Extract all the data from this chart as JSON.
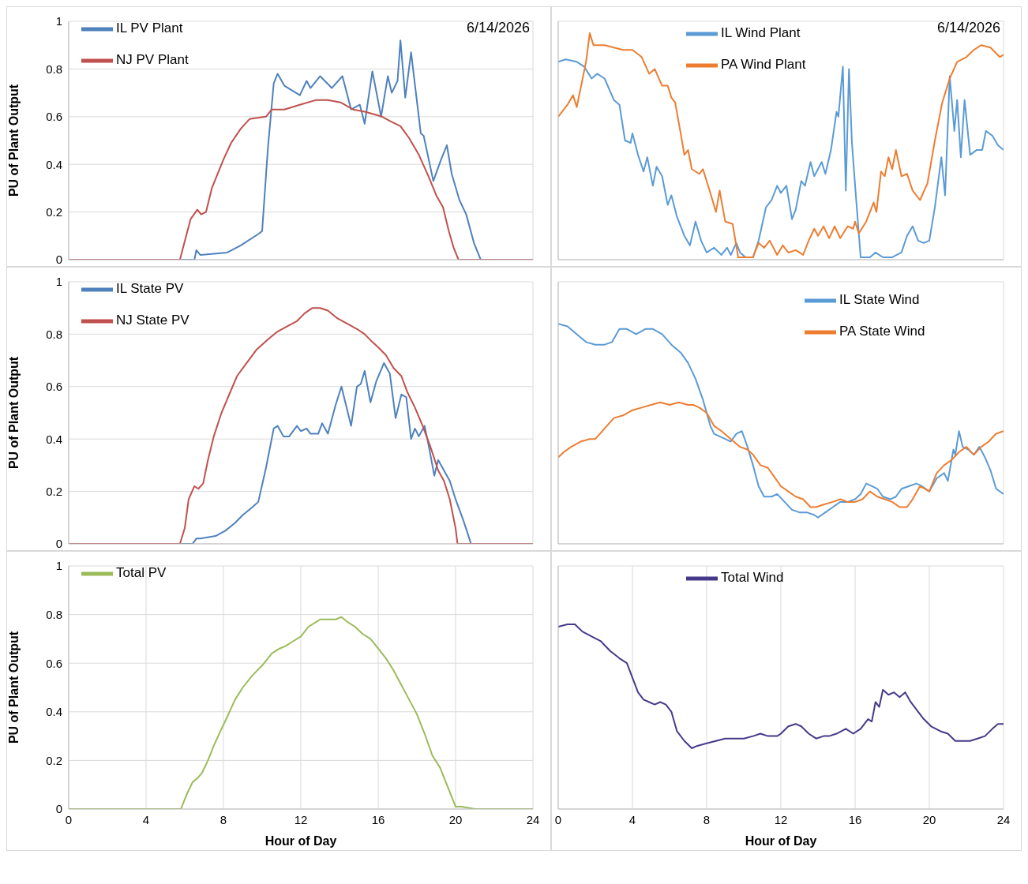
{
  "chart_data": [
    {
      "type": "line",
      "ylabel": "PU of Plant Output",
      "annotations": [
        "6/14/2026"
      ],
      "xlim": [
        0,
        24
      ],
      "xticks": [
        0,
        4,
        8,
        12,
        16,
        20,
        24
      ],
      "ylim": [
        0,
        1
      ],
      "yticks": [
        0,
        0.2,
        0.4,
        0.6,
        0.8,
        1
      ],
      "tick_labels": "y",
      "grid": true,
      "legend": "top left",
      "marker": "none",
      "series": [
        {
          "name": "IL PV Plant",
          "color": "#4f81bd",
          "x": [
            0,
            6.5,
            6.6,
            6.8,
            8.2,
            8.9,
            9.85,
            10.0,
            10.3,
            10.6,
            10.8,
            11.15,
            11.95,
            12.3,
            12.5,
            13.0,
            13.6,
            14.15,
            14.6,
            15.05,
            15.3,
            15.7,
            16.15,
            16.5,
            16.7,
            17.0,
            17.15,
            17.4,
            17.7,
            17.95,
            18.2,
            18.35,
            18.85,
            19.25,
            19.55,
            19.8,
            20.2,
            20.55,
            20.95,
            21.3,
            24
          ],
          "values": [
            0,
            0,
            0.04,
            0.02,
            0.03,
            0.06,
            0.11,
            0.12,
            0.47,
            0.74,
            0.78,
            0.73,
            0.69,
            0.75,
            0.72,
            0.77,
            0.72,
            0.77,
            0.63,
            0.65,
            0.57,
            0.79,
            0.6,
            0.77,
            0.7,
            0.75,
            0.92,
            0.68,
            0.87,
            0.7,
            0.53,
            0.52,
            0.33,
            0.42,
            0.48,
            0.36,
            0.25,
            0.19,
            0.07,
            0,
            0
          ]
        },
        {
          "name": "NJ PV Plant",
          "color": "#c0504d",
          "x": [
            0,
            5.75,
            6.3,
            6.65,
            6.85,
            7.1,
            7.4,
            8.0,
            8.4,
            8.9,
            9.35,
            10.2,
            10.5,
            11.15,
            11.95,
            12.8,
            13.4,
            14.05,
            14.7,
            15.35,
            16.2,
            16.65,
            17.15,
            17.6,
            18.1,
            18.6,
            19.0,
            19.35,
            19.65,
            19.9,
            20.15,
            24
          ],
          "values": [
            0,
            0,
            0.17,
            0.21,
            0.19,
            0.2,
            0.3,
            0.42,
            0.49,
            0.55,
            0.59,
            0.6,
            0.63,
            0.63,
            0.65,
            0.67,
            0.67,
            0.66,
            0.63,
            0.62,
            0.6,
            0.58,
            0.56,
            0.51,
            0.44,
            0.35,
            0.27,
            0.22,
            0.12,
            0.05,
            0,
            0
          ]
        }
      ]
    },
    {
      "type": "line",
      "annotations": [
        "6/14/2026"
      ],
      "xlim": [
        0,
        24
      ],
      "xticks": [
        0,
        4,
        8,
        12,
        16,
        20,
        24
      ],
      "ylim": [
        0,
        1
      ],
      "yticks": [
        0,
        0.2,
        0.4,
        0.6,
        0.8,
        1
      ],
      "tick_labels": false,
      "grid": true,
      "legend": "top",
      "marker": "none",
      "series": [
        {
          "name": "IL Wind Plant",
          "color": "#5b9bd5",
          "x": [
            0,
            0.4,
            1.0,
            1.4,
            1.8,
            2.1,
            2.5,
            3.0,
            3.3,
            3.6,
            3.9,
            4.0,
            4.3,
            4.6,
            4.8,
            5.1,
            5.3,
            5.6,
            5.9,
            6.1,
            6.4,
            6.8,
            7.1,
            7.4,
            7.7,
            8.0,
            8.4,
            8.8,
            9.1,
            9.3,
            9.6,
            9.8,
            10.1,
            10.5,
            10.8,
            11.2,
            11.5,
            11.8,
            12.0,
            12.3,
            12.6,
            12.8,
            13.1,
            13.3,
            13.6,
            13.8,
            14.2,
            14.4,
            14.7,
            15.0,
            15.1,
            15.34,
            15.5,
            15.67,
            15.83,
            16.07,
            16.3,
            16.8,
            17.1,
            17.5,
            18.0,
            18.5,
            18.8,
            19.1,
            19.4,
            19.7,
            20.0,
            20.3,
            20.65,
            20.85,
            21.1,
            21.35,
            21.5,
            21.7,
            21.9,
            22.2,
            22.55,
            22.85,
            23.05,
            23.4,
            23.7,
            24
          ],
          "values": [
            0.83,
            0.84,
            0.83,
            0.81,
            0.76,
            0.78,
            0.76,
            0.67,
            0.65,
            0.5,
            0.49,
            0.53,
            0.44,
            0.37,
            0.43,
            0.31,
            0.39,
            0.35,
            0.23,
            0.27,
            0.18,
            0.1,
            0.06,
            0.16,
            0.08,
            0.03,
            0.05,
            0.02,
            0.05,
            0.02,
            0.07,
            0.03,
            0.01,
            0.01,
            0.08,
            0.22,
            0.25,
            0.31,
            0.28,
            0.31,
            0.17,
            0.21,
            0.33,
            0.31,
            0.41,
            0.35,
            0.41,
            0.36,
            0.46,
            0.62,
            0.6,
            0.81,
            0.29,
            0.8,
            0.49,
            0.24,
            0.01,
            0.01,
            0.03,
            0.01,
            0.01,
            0.03,
            0.1,
            0.14,
            0.08,
            0.07,
            0.08,
            0.22,
            0.43,
            0.27,
            0.77,
            0.54,
            0.67,
            0.43,
            0.67,
            0.44,
            0.46,
            0.46,
            0.54,
            0.52,
            0.48,
            0.46
          ]
        },
        {
          "name": "PA Wind Plant",
          "color": "#ed7d31",
          "x": [
            0,
            0.5,
            0.8,
            1.0,
            1.5,
            1.7,
            1.9,
            2.5,
            3.0,
            3.5,
            4.0,
            4.5,
            4.9,
            5.2,
            5.6,
            5.9,
            6.1,
            6.3,
            6.6,
            6.8,
            7.0,
            7.2,
            7.6,
            7.8,
            8.2,
            8.5,
            8.7,
            9.0,
            9.4,
            9.7,
            10.5,
            10.8,
            11.1,
            11.4,
            11.8,
            12.1,
            12.4,
            12.8,
            13.2,
            13.5,
            13.8,
            14.0,
            14.3,
            14.6,
            14.9,
            15.2,
            15.6,
            15.9,
            16.0,
            16.2,
            16.6,
            17.0,
            17.15,
            17.4,
            17.6,
            17.8,
            18.0,
            18.2,
            18.5,
            18.8,
            19.1,
            19.5,
            19.9,
            20.3,
            20.7,
            21.1,
            21.5,
            22.0,
            22.4,
            22.8,
            23.3,
            23.8,
            24
          ],
          "values": [
            0.6,
            0.65,
            0.69,
            0.64,
            0.83,
            0.95,
            0.9,
            0.9,
            0.89,
            0.88,
            0.88,
            0.85,
            0.78,
            0.8,
            0.73,
            0.73,
            0.68,
            0.66,
            0.53,
            0.44,
            0.46,
            0.38,
            0.36,
            0.38,
            0.28,
            0.2,
            0.29,
            0.16,
            0.15,
            0.01,
            0.01,
            0.07,
            0.05,
            0.08,
            0.02,
            0.06,
            0.03,
            0.04,
            0.02,
            0.08,
            0.13,
            0.1,
            0.14,
            0.09,
            0.14,
            0.09,
            0.14,
            0.13,
            0.16,
            0.11,
            0.16,
            0.24,
            0.2,
            0.37,
            0.35,
            0.43,
            0.38,
            0.46,
            0.35,
            0.36,
            0.29,
            0.25,
            0.32,
            0.5,
            0.66,
            0.76,
            0.83,
            0.85,
            0.88,
            0.9,
            0.89,
            0.85,
            0.86
          ]
        }
      ]
    },
    {
      "type": "line",
      "ylabel": "PU of Plant Output",
      "xlim": [
        0,
        24
      ],
      "xticks": [
        0,
        4,
        8,
        12,
        16,
        20,
        24
      ],
      "ylim": [
        0,
        1
      ],
      "yticks": [
        0,
        0.2,
        0.4,
        0.6,
        0.8,
        1
      ],
      "tick_labels": "y",
      "grid": true,
      "legend": "top left",
      "marker": "none",
      "series": [
        {
          "name": "IL State PV",
          "color": "#4f81bd",
          "x": [
            0,
            6.4,
            6.6,
            6.8,
            7.6,
            8.1,
            8.6,
            9.0,
            9.5,
            9.8,
            10.2,
            10.6,
            10.8,
            11.1,
            11.4,
            11.8,
            12.0,
            12.3,
            12.5,
            12.9,
            13.1,
            13.4,
            13.8,
            14.1,
            14.6,
            14.9,
            15.1,
            15.3,
            15.6,
            15.9,
            16.3,
            16.6,
            16.9,
            17.2,
            17.45,
            17.7,
            17.9,
            18.1,
            18.4,
            18.65,
            18.9,
            19.1,
            19.4,
            19.7,
            20.0,
            20.4,
            20.8,
            24
          ],
          "values": [
            0,
            0,
            0.02,
            0.02,
            0.03,
            0.05,
            0.08,
            0.11,
            0.14,
            0.16,
            0.29,
            0.44,
            0.45,
            0.41,
            0.41,
            0.45,
            0.43,
            0.44,
            0.42,
            0.42,
            0.46,
            0.42,
            0.53,
            0.6,
            0.45,
            0.6,
            0.61,
            0.66,
            0.54,
            0.62,
            0.69,
            0.65,
            0.48,
            0.57,
            0.56,
            0.4,
            0.44,
            0.41,
            0.45,
            0.36,
            0.26,
            0.32,
            0.28,
            0.24,
            0.17,
            0.09,
            0,
            0
          ]
        },
        {
          "name": "NJ State PV",
          "color": "#c0504d",
          "x": [
            0,
            5.75,
            6.0,
            6.2,
            6.5,
            6.7,
            6.95,
            7.2,
            7.5,
            7.9,
            8.3,
            8.7,
            9.2,
            9.7,
            10.3,
            10.8,
            11.3,
            11.8,
            12.2,
            12.6,
            13.0,
            13.4,
            13.9,
            14.4,
            14.9,
            15.3,
            15.7,
            16.0,
            16.4,
            16.8,
            17.2,
            17.5,
            17.9,
            18.3,
            18.7,
            19.1,
            19.4,
            19.7,
            20.0,
            20.1,
            24
          ],
          "values": [
            0,
            0,
            0.06,
            0.17,
            0.22,
            0.21,
            0.23,
            0.32,
            0.41,
            0.5,
            0.57,
            0.64,
            0.69,
            0.74,
            0.78,
            0.81,
            0.83,
            0.85,
            0.88,
            0.9,
            0.9,
            0.89,
            0.86,
            0.84,
            0.82,
            0.8,
            0.77,
            0.75,
            0.72,
            0.67,
            0.64,
            0.58,
            0.52,
            0.45,
            0.37,
            0.28,
            0.24,
            0.17,
            0.06,
            0,
            0
          ]
        }
      ]
    },
    {
      "type": "line",
      "xlim": [
        0,
        24
      ],
      "xticks": [
        0,
        4,
        8,
        12,
        16,
        20,
        24
      ],
      "ylim": [
        0,
        1
      ],
      "yticks": [
        0,
        0.2,
        0.4,
        0.6,
        0.8,
        1
      ],
      "tick_labels": false,
      "grid": true,
      "legend": "top right",
      "marker": "none",
      "series": [
        {
          "name": "IL State Wind",
          "color": "#5b9bd5",
          "x": [
            0,
            0.5,
            1.0,
            1.5,
            2.0,
            2.5,
            2.9,
            3.3,
            3.7,
            4.2,
            4.7,
            5.1,
            5.6,
            6.1,
            6.6,
            7.0,
            7.4,
            7.8,
            8.0,
            8.2,
            8.4,
            8.7,
            9.0,
            9.3,
            9.6,
            9.9,
            10.2,
            10.5,
            10.8,
            11.1,
            11.5,
            11.8,
            12.2,
            12.6,
            13.0,
            13.4,
            13.8,
            14.0,
            14.4,
            14.8,
            15.2,
            15.6,
            16.0,
            16.3,
            16.6,
            16.9,
            17.2,
            17.5,
            17.9,
            18.2,
            18.5,
            18.9,
            19.3,
            19.6,
            20.0,
            20.4,
            20.8,
            21.0,
            21.3,
            21.4,
            21.6,
            21.8,
            22.1,
            22.4,
            22.7,
            23.0,
            23.3,
            23.6,
            24
          ],
          "values": [
            0.84,
            0.83,
            0.8,
            0.77,
            0.76,
            0.76,
            0.77,
            0.82,
            0.82,
            0.8,
            0.82,
            0.82,
            0.8,
            0.76,
            0.73,
            0.69,
            0.63,
            0.55,
            0.5,
            0.45,
            0.42,
            0.41,
            0.4,
            0.39,
            0.42,
            0.43,
            0.37,
            0.3,
            0.22,
            0.18,
            0.18,
            0.19,
            0.16,
            0.13,
            0.12,
            0.12,
            0.11,
            0.1,
            0.12,
            0.14,
            0.16,
            0.16,
            0.17,
            0.19,
            0.23,
            0.22,
            0.21,
            0.18,
            0.17,
            0.18,
            0.21,
            0.22,
            0.23,
            0.22,
            0.2,
            0.25,
            0.27,
            0.24,
            0.36,
            0.34,
            0.43,
            0.37,
            0.36,
            0.34,
            0.37,
            0.33,
            0.28,
            0.21,
            0.19
          ]
        },
        {
          "name": "PA State Wind",
          "color": "#ed7d31",
          "x": [
            0,
            0.3,
            0.7,
            1.2,
            1.7,
            2.0,
            2.5,
            3.0,
            3.5,
            4.0,
            4.5,
            5.0,
            5.5,
            6.0,
            6.5,
            7.0,
            7.3,
            7.6,
            8.0,
            8.4,
            8.8,
            9.3,
            9.8,
            10.2,
            10.5,
            10.9,
            11.3,
            11.6,
            12.0,
            12.4,
            12.8,
            13.2,
            13.6,
            13.9,
            14.3,
            14.8,
            15.2,
            15.6,
            16.0,
            16.4,
            16.8,
            17.2,
            17.6,
            18.0,
            18.4,
            18.8,
            19.1,
            19.5,
            20.0,
            20.4,
            20.8,
            21.2,
            21.6,
            22.0,
            22.4,
            22.8,
            23.2,
            23.6,
            24
          ],
          "values": [
            0.33,
            0.35,
            0.37,
            0.39,
            0.4,
            0.4,
            0.44,
            0.48,
            0.49,
            0.51,
            0.52,
            0.53,
            0.54,
            0.53,
            0.54,
            0.53,
            0.53,
            0.52,
            0.5,
            0.45,
            0.43,
            0.4,
            0.37,
            0.36,
            0.34,
            0.3,
            0.29,
            0.26,
            0.22,
            0.2,
            0.18,
            0.17,
            0.14,
            0.14,
            0.15,
            0.16,
            0.17,
            0.16,
            0.16,
            0.17,
            0.2,
            0.18,
            0.17,
            0.16,
            0.14,
            0.14,
            0.17,
            0.22,
            0.2,
            0.27,
            0.3,
            0.32,
            0.35,
            0.37,
            0.34,
            0.37,
            0.39,
            0.42,
            0.43
          ]
        }
      ]
    },
    {
      "type": "line",
      "ylabel": "PU of Plant Output",
      "xlabel": "Hour of Day",
      "xlim": [
        0,
        24
      ],
      "xticks": [
        0,
        4,
        8,
        12,
        16,
        20,
        24
      ],
      "ylim": [
        0,
        1
      ],
      "yticks": [
        0,
        0.2,
        0.4,
        0.6,
        0.8,
        1
      ],
      "grid": true,
      "legend": "top left",
      "marker": "none",
      "series": [
        {
          "name": "Total PV",
          "color": "#9bbb59",
          "x": [
            0,
            5.8,
            6.1,
            6.4,
            6.7,
            6.9,
            7.2,
            7.5,
            7.9,
            8.2,
            8.6,
            9.0,
            9.5,
            10.0,
            10.5,
            10.9,
            11.2,
            11.6,
            12.0,
            12.4,
            12.8,
            13.0,
            13.5,
            13.8,
            14.1,
            14.4,
            14.8,
            15.2,
            15.6,
            16.0,
            16.4,
            16.8,
            17.2,
            17.6,
            18.0,
            18.4,
            18.8,
            19.2,
            19.5,
            19.8,
            20.0,
            20.3,
            21,
            24
          ],
          "values": [
            0,
            0,
            0.06,
            0.11,
            0.13,
            0.15,
            0.2,
            0.26,
            0.33,
            0.38,
            0.45,
            0.5,
            0.55,
            0.59,
            0.64,
            0.66,
            0.67,
            0.69,
            0.71,
            0.75,
            0.77,
            0.78,
            0.78,
            0.78,
            0.79,
            0.77,
            0.75,
            0.72,
            0.7,
            0.66,
            0.62,
            0.57,
            0.51,
            0.45,
            0.39,
            0.31,
            0.22,
            0.17,
            0.11,
            0.05,
            0.01,
            0.01,
            0,
            0
          ]
        }
      ]
    },
    {
      "type": "line",
      "xlabel": "Hour of Day",
      "xlim": [
        0,
        24
      ],
      "xticks": [
        0,
        4,
        8,
        12,
        16,
        20,
        24
      ],
      "ylim": [
        0,
        1
      ],
      "yticks": [
        0,
        0.2,
        0.4,
        0.6,
        0.8,
        1
      ],
      "tick_labels": "x",
      "grid": true,
      "legend": "top",
      "marker": "none",
      "series": [
        {
          "name": "Total Wind",
          "color": "#47398a",
          "x": [
            0,
            0.5,
            0.9,
            1.3,
            1.8,
            2.3,
            2.8,
            3.3,
            3.7,
            4.0,
            4.3,
            4.6,
            4.9,
            5.2,
            5.5,
            5.8,
            6.1,
            6.4,
            6.8,
            7.2,
            7.5,
            8.0,
            8.5,
            9.0,
            9.5,
            10.0,
            10.5,
            10.9,
            11.3,
            11.8,
            12.0,
            12.4,
            12.8,
            13.1,
            13.5,
            13.9,
            14.3,
            14.6,
            15.0,
            15.5,
            15.9,
            16.3,
            16.7,
            16.9,
            17.1,
            17.3,
            17.5,
            17.8,
            18.1,
            18.4,
            18.7,
            19.0,
            19.4,
            19.7,
            20.1,
            20.6,
            21.0,
            21.4,
            21.8,
            22.2,
            22.6,
            23.0,
            23.4,
            23.7,
            24
          ],
          "values": [
            0.75,
            0.76,
            0.76,
            0.73,
            0.71,
            0.69,
            0.65,
            0.62,
            0.6,
            0.54,
            0.48,
            0.45,
            0.44,
            0.43,
            0.44,
            0.43,
            0.4,
            0.32,
            0.28,
            0.25,
            0.26,
            0.27,
            0.28,
            0.29,
            0.29,
            0.29,
            0.3,
            0.31,
            0.3,
            0.3,
            0.31,
            0.34,
            0.35,
            0.34,
            0.31,
            0.29,
            0.3,
            0.3,
            0.31,
            0.33,
            0.31,
            0.33,
            0.37,
            0.36,
            0.44,
            0.42,
            0.49,
            0.47,
            0.48,
            0.46,
            0.48,
            0.44,
            0.4,
            0.37,
            0.34,
            0.32,
            0.31,
            0.28,
            0.28,
            0.28,
            0.29,
            0.3,
            0.33,
            0.35,
            0.35
          ]
        }
      ]
    }
  ]
}
